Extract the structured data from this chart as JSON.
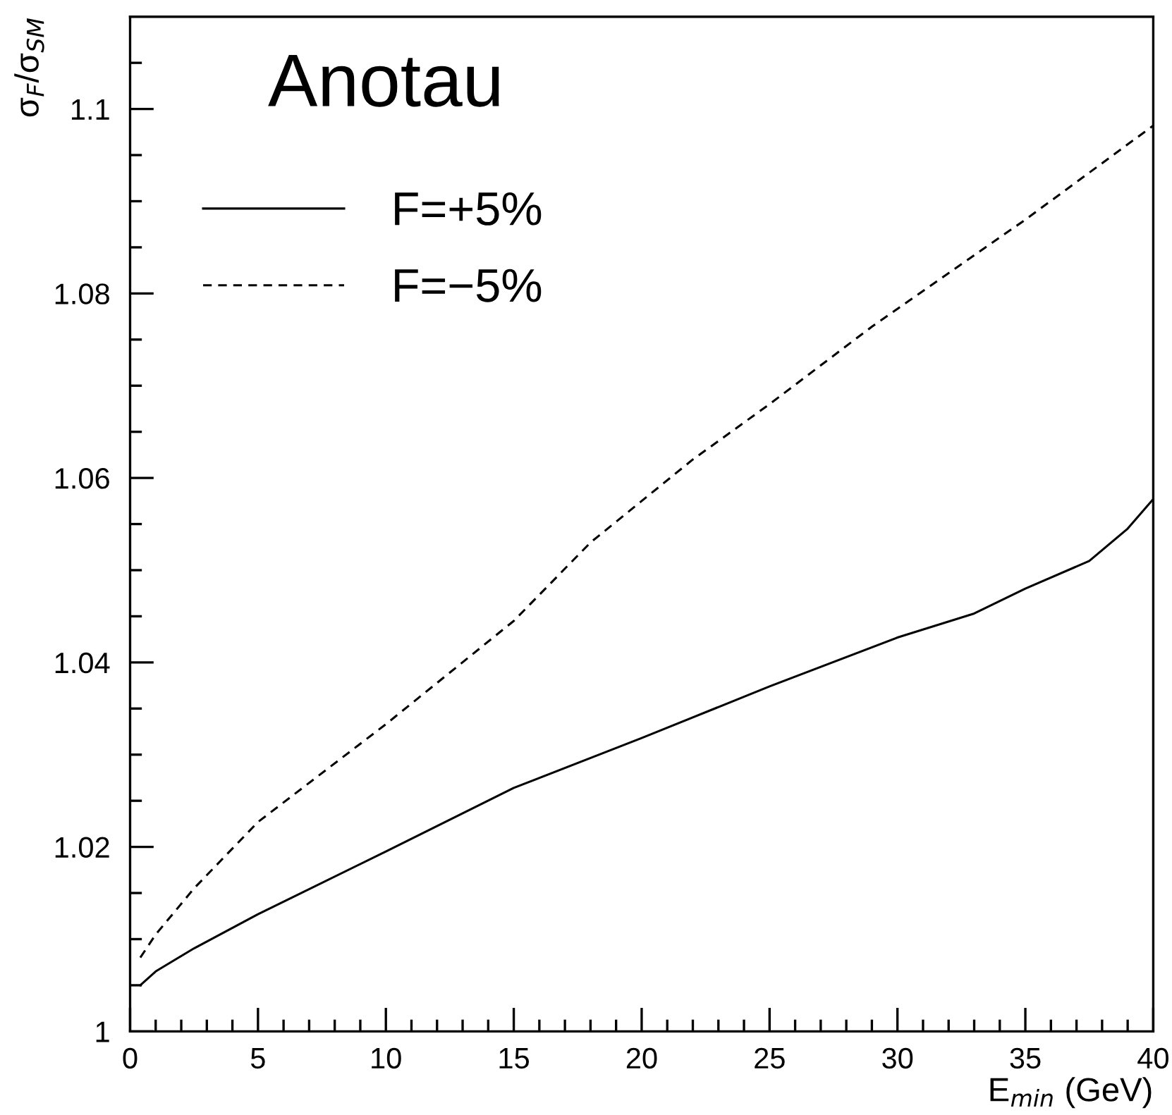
{
  "chart_data": {
    "type": "line",
    "title": "Anotau",
    "xlabel": "E$_{min}$ (GeV)",
    "ylabel": "σ$_{F}$/σ$_{SM}$",
    "xlim": [
      0,
      40
    ],
    "ylim": [
      1,
      1.11
    ],
    "xticks": [
      0,
      {
        "value": 1,
        "label": null
      },
      {
        "value": 2,
        "label": null
      },
      {
        "value": 3,
        "label": null
      },
      {
        "value": 4,
        "label": null
      },
      5,
      {
        "value": 6,
        "label": null
      },
      {
        "value": 7,
        "label": null
      },
      {
        "value": 8,
        "label": null
      },
      {
        "value": 9,
        "label": null
      },
      10,
      {
        "value": 11,
        "label": null
      },
      {
        "value": 12,
        "label": null
      },
      {
        "value": 13,
        "label": null
      },
      {
        "value": 14,
        "label": null
      },
      15,
      {
        "value": 16,
        "label": null
      },
      {
        "value": 17,
        "label": null
      },
      {
        "value": 18,
        "label": null
      },
      {
        "value": 19,
        "label": null
      },
      20,
      {
        "value": 21,
        "label": null
      },
      {
        "value": 22,
        "label": null
      },
      {
        "value": 23,
        "label": null
      },
      {
        "value": 24,
        "label": null
      },
      25,
      {
        "value": 26,
        "label": null
      },
      {
        "value": 27,
        "label": null
      },
      {
        "value": 28,
        "label": null
      },
      {
        "value": 29,
        "label": null
      },
      30,
      {
        "value": 31,
        "label": null
      },
      {
        "value": 32,
        "label": null
      },
      {
        "value": 33,
        "label": null
      },
      {
        "value": 34,
        "label": null
      },
      35,
      {
        "value": 36,
        "label": null
      },
      {
        "value": 37,
        "label": null
      },
      {
        "value": 38,
        "label": null
      },
      {
        "value": 39,
        "label": null
      },
      40
    ],
    "yticks": [
      1,
      {
        "value": 1.005,
        "label": null
      },
      1.02,
      {
        "value": 1.015,
        "label": null
      },
      {
        "value": 1.01,
        "label": null
      },
      {
        "value": 1.025,
        "label": null
      },
      1.04,
      {
        "value": 1.03,
        "label": null
      },
      {
        "value": 1.035,
        "label": null
      },
      {
        "value": 1.045,
        "label": null
      },
      1.06,
      {
        "value": 1.05,
        "label": null
      },
      {
        "value": 1.055,
        "label": null
      },
      {
        "value": 1.065,
        "label": null
      },
      1.08,
      {
        "value": 1.07,
        "label": null
      },
      {
        "value": 1.075,
        "label": null
      },
      {
        "value": 1.085,
        "label": null
      },
      1.1,
      {
        "value": 1.09,
        "label": null
      },
      {
        "value": 1.095,
        "label": null
      },
      {
        "value": 1.105,
        "label": null
      }
    ],
    "grid": false,
    "legend": "top left",
    "marker": "none",
    "series": [
      {
        "name": "F=+5%",
        "color": "#000000",
        "line_style": "solid",
        "x": [
          0.4,
          1,
          2.5,
          5,
          10,
          15,
          20,
          25,
          30,
          33,
          35,
          37.5,
          39,
          40
        ],
        "values": [
          1.005,
          1.0065,
          1.009,
          1.0127,
          1.0195,
          1.0264,
          1.0318,
          1.0374,
          1.0427,
          1.0453,
          1.048,
          1.051,
          1.0545,
          1.0577
        ]
      },
      {
        "name": "F=−5%",
        "color": "#000000",
        "line_style": "dashed",
        "x": [
          0.4,
          1,
          2.5,
          5,
          10,
          15,
          18,
          22,
          25,
          29,
          35,
          40
        ],
        "values": [
          1.008,
          1.0105,
          1.0155,
          1.0227,
          1.0333,
          1.0445,
          1.053,
          1.062,
          1.068,
          1.0764,
          1.088,
          1.0982
        ]
      }
    ]
  }
}
